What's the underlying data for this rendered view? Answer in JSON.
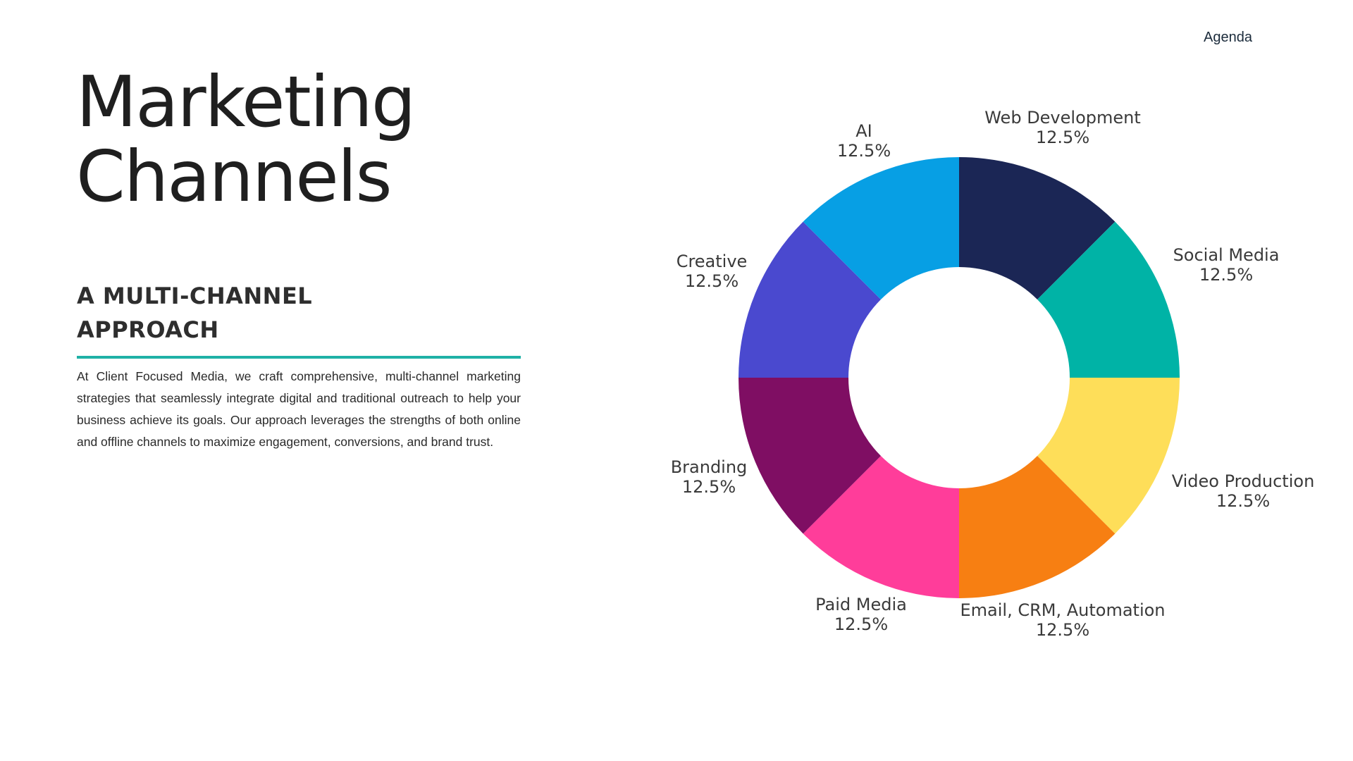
{
  "nav": {
    "agenda_label": "Agenda"
  },
  "title": {
    "line1": "Marketing",
    "line2": "Channels"
  },
  "subtitle": {
    "line1": "A MULTI-CHANNEL",
    "line2": "APPROACH"
  },
  "description": "At Client Focused Media, we craft comprehensive, multi-channel marketing strategies that seamlessly integrate digital and traditional outreach to help your business achieve its goals. Our approach leverages the strengths of both online and offline channels to maximize engagement, conversions, and brand trust.",
  "colors": {
    "accent_rule": "#1fb1a6"
  },
  "chart_data": {
    "type": "pie",
    "variant": "donut",
    "title": "",
    "legend": "none",
    "categories": [
      "Web Development",
      "Social Media",
      "Video Production",
      "Email, CRM, Automation",
      "Paid Media",
      "Branding",
      "Creative",
      "AI"
    ],
    "values": [
      12.5,
      12.5,
      12.5,
      12.5,
      12.5,
      12.5,
      12.5,
      12.5
    ],
    "value_labels": [
      "12.5%",
      "12.5%",
      "12.5%",
      "12.5%",
      "12.5%",
      "12.5%",
      "12.5%",
      "12.5%"
    ],
    "colors": [
      "#1b2655",
      "#00b3a6",
      "#fede59",
      "#f77f12",
      "#ff3d9a",
      "#7f0e63",
      "#4a49cf",
      "#079fe4"
    ]
  }
}
